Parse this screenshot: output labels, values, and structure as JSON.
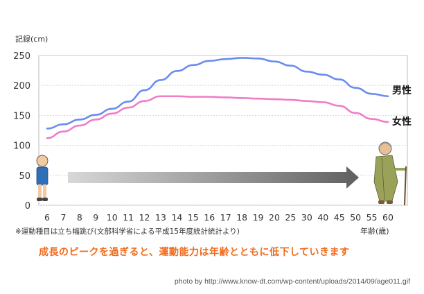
{
  "chart_data": {
    "type": "line",
    "ylabel": "記録(cm)",
    "xlabel": "年齢(歳)",
    "categories": [
      "6",
      "7",
      "8",
      "9",
      "10",
      "11",
      "12",
      "13",
      "14",
      "15",
      "16",
      "17",
      "18",
      "19",
      "20",
      "25",
      "30",
      "40",
      "45",
      "50",
      "55",
      "60"
    ],
    "ylim": [
      0,
      250
    ],
    "yticks": [
      "0",
      "50",
      "100",
      "150",
      "200",
      "250"
    ],
    "grid": true,
    "series": [
      {
        "name": "男性",
        "color": "#6a8cf0",
        "values": [
          128,
          135,
          143,
          151,
          161,
          173,
          192,
          209,
          224,
          234,
          241,
          244,
          246,
          245,
          240,
          233,
          223,
          218,
          210,
          196,
          186,
          182
        ]
      },
      {
        "name": "女性",
        "color": "#f07cc8",
        "values": [
          112,
          123,
          133,
          143,
          153,
          163,
          174,
          182,
          182,
          181,
          181,
          180,
          179,
          178,
          177,
          176,
          174,
          172,
          166,
          154,
          144,
          139
        ]
      }
    ],
    "note": "※運動種目は立ち幅跳び(文部科学省による平成15年度統計統計より)"
  },
  "caption": "成長のピークを過ぎると、運動能力は年齢とともに低下していきます",
  "credit": "photo by http://www.know-dt.com/wp-content/uploads/2014/09/age011.gif"
}
